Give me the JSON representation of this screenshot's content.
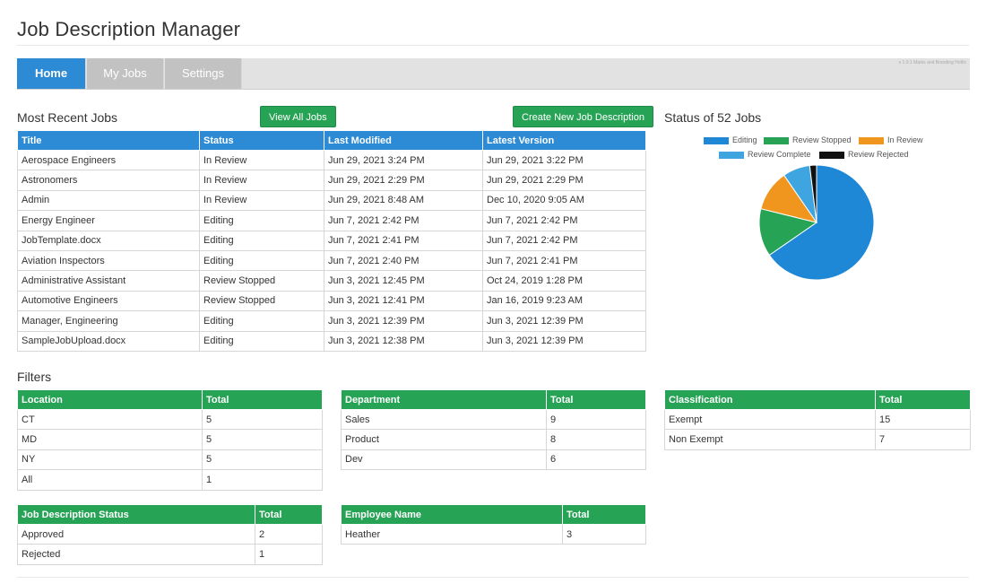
{
  "app": {
    "title": "Job Description Manager",
    "version": "v 1.0.1 Marks and Branding Hotfix"
  },
  "nav": {
    "tabs": [
      {
        "label": "Home",
        "active": true
      },
      {
        "label": "My Jobs",
        "active": false
      },
      {
        "label": "Settings",
        "active": false
      }
    ]
  },
  "recent": {
    "heading": "Most Recent Jobs",
    "view_all_label": "View All Jobs",
    "create_label": "Create New Job Description",
    "columns": [
      "Title",
      "Status",
      "Last Modified",
      "Latest Version"
    ],
    "rows": [
      [
        "Aerospace Engineers",
        "In Review",
        "Jun 29, 2021 3:24 PM",
        "Jun 29, 2021 3:22 PM"
      ],
      [
        "Astronomers",
        "In Review",
        "Jun 29, 2021 2:29 PM",
        "Jun 29, 2021 2:29 PM"
      ],
      [
        "Admin",
        "In Review",
        "Jun 29, 2021 8:48 AM",
        "Dec 10, 2020 9:05 AM"
      ],
      [
        "Energy Engineer",
        "Editing",
        "Jun 7, 2021 2:42 PM",
        "Jun 7, 2021 2:42 PM"
      ],
      [
        "JobTemplate.docx",
        "Editing",
        "Jun 7, 2021 2:41 PM",
        "Jun 7, 2021 2:42 PM"
      ],
      [
        "Aviation Inspectors",
        "Editing",
        "Jun 7, 2021 2:40 PM",
        "Jun 7, 2021 2:41 PM"
      ],
      [
        "Administrative Assistant",
        "Review Stopped",
        "Jun 3, 2021 12:45 PM",
        "Oct 24, 2019 1:28 PM"
      ],
      [
        "Automotive Engineers",
        "Review Stopped",
        "Jun 3, 2021 12:41 PM",
        "Jan 16, 2019 9:23 AM"
      ],
      [
        "Manager, Engineering",
        "Editing",
        "Jun 3, 2021 12:39 PM",
        "Jun 3, 2021 12:39 PM"
      ],
      [
        "SampleJobUpload.docx",
        "Editing",
        "Jun 3, 2021 12:38 PM",
        "Jun 3, 2021 12:39 PM"
      ]
    ]
  },
  "status_chart": {
    "heading": "Status of 52 Jobs",
    "chart_data": {
      "type": "pie",
      "title": "Status of 52 Jobs",
      "legend_position": "top",
      "slices": [
        {
          "label": "Editing",
          "value": 34,
          "color": "#1e88d6"
        },
        {
          "label": "Review Stopped",
          "value": 7,
          "color": "#27a356"
        },
        {
          "label": "In Review",
          "value": 6,
          "color": "#f0961f"
        },
        {
          "label": "Review Complete",
          "value": 4,
          "color": "#3fa5e0"
        },
        {
          "label": "Review Rejected",
          "value": 1,
          "color": "#111111"
        }
      ]
    }
  },
  "filters": {
    "heading": "Filters",
    "location": {
      "columns": [
        "Location",
        "Total"
      ],
      "rows": [
        [
          "CT",
          "5"
        ],
        [
          "MD",
          "5"
        ],
        [
          "NY",
          "5"
        ],
        [
          "All",
          "1"
        ]
      ]
    },
    "department": {
      "columns": [
        "Department",
        "Total"
      ],
      "rows": [
        [
          "Sales",
          "9"
        ],
        [
          "Product",
          "8"
        ],
        [
          "Dev",
          "6"
        ]
      ]
    },
    "classification": {
      "columns": [
        "Classification",
        "Total"
      ],
      "rows": [
        [
          "Exempt",
          "15"
        ],
        [
          "Non Exempt",
          "7"
        ]
      ]
    },
    "jd_status": {
      "columns": [
        "Job Description Status",
        "Total"
      ],
      "rows": [
        [
          "Approved",
          "2"
        ],
        [
          "Rejected",
          "1"
        ]
      ]
    },
    "employee": {
      "columns": [
        "Employee Name",
        "Total"
      ],
      "rows": [
        [
          "Heather",
          "3"
        ]
      ]
    }
  }
}
